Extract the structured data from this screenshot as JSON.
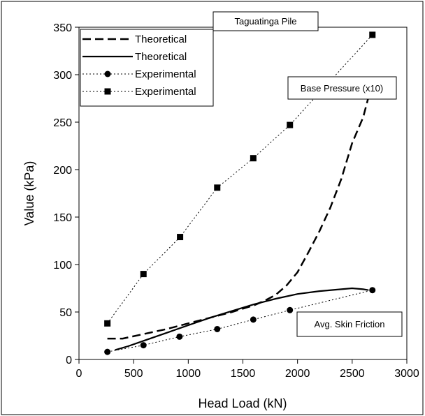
{
  "chart_data": {
    "type": "line",
    "title": "Taguatinga Pile",
    "xlabel": "Head Load (kN)",
    "ylabel": "Value (kPa)",
    "xlim": [
      0,
      3000
    ],
    "ylim": [
      0,
      350
    ],
    "x_ticks": [
      0,
      500,
      1000,
      1500,
      2000,
      2500,
      3000
    ],
    "y_ticks": [
      0,
      50,
      100,
      150,
      200,
      250,
      300,
      350
    ],
    "grid": false,
    "legend_position": "top-left",
    "annotations": {
      "base_pressure": "Base Pressure (x10)",
      "skin_friction": "Avg. Skin Friction"
    },
    "series": [
      {
        "name": "Theoretical",
        "style": "dashed",
        "marker": "none",
        "x": [
          260,
          400,
          600,
          800,
          1000,
          1200,
          1400,
          1600,
          1700,
          1800,
          1900,
          2000,
          2100,
          2200,
          2300,
          2400,
          2500,
          2600,
          2680
        ],
        "y": [
          22,
          22,
          27,
          32,
          38,
          44,
          50,
          57,
          62,
          68,
          78,
          92,
          113,
          135,
          160,
          190,
          228,
          255,
          290
        ]
      },
      {
        "name": "Theoretical",
        "style": "solid",
        "marker": "none",
        "x": [
          330,
          450,
          600,
          800,
          1000,
          1200,
          1400,
          1600,
          1800,
          2000,
          2200,
          2400,
          2500,
          2600,
          2650
        ],
        "y": [
          10,
          14,
          20,
          28,
          36,
          44,
          51,
          58,
          64,
          69,
          72,
          74,
          75,
          74,
          73
        ]
      },
      {
        "name": "Experimental",
        "style": "dotted",
        "marker": "circle",
        "x": [
          260,
          590,
          920,
          1265,
          1595,
          1930,
          2685
        ],
        "y": [
          8,
          15,
          24,
          32,
          42,
          52,
          73
        ]
      },
      {
        "name": "Experimental",
        "style": "dotted",
        "marker": "square",
        "x": [
          260,
          590,
          925,
          1265,
          1595,
          1930,
          2685
        ],
        "y": [
          38,
          90,
          129,
          181,
          212,
          247,
          342
        ]
      }
    ]
  }
}
